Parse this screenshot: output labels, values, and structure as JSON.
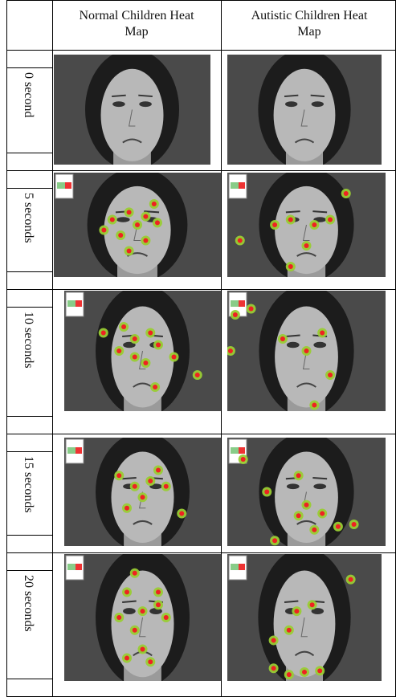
{
  "table": {
    "columns": [
      "Normal Children Heat Map",
      "Autistic Children Heat Map"
    ],
    "rows": [
      {
        "label": "0 second"
      },
      {
        "label": "5 seconds"
      },
      {
        "label": "10 seconds"
      },
      {
        "label": "15 seconds"
      },
      {
        "label": "20 seconds"
      }
    ]
  }
}
